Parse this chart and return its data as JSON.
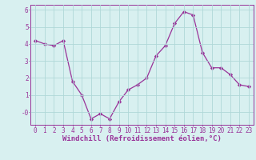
{
  "x": [
    0,
    1,
    2,
    3,
    4,
    5,
    6,
    7,
    8,
    9,
    10,
    11,
    12,
    13,
    14,
    15,
    16,
    17,
    18,
    19,
    20,
    21,
    22,
    23
  ],
  "y": [
    4.2,
    4.0,
    3.9,
    4.2,
    1.8,
    1.0,
    -0.4,
    -0.1,
    -0.4,
    0.6,
    1.3,
    1.6,
    2.0,
    3.3,
    3.9,
    5.2,
    5.9,
    5.7,
    3.5,
    2.6,
    2.6,
    2.2,
    1.6,
    1.5
  ],
  "line_color": "#993399",
  "marker": "D",
  "marker_size": 2.2,
  "bg_color": "#d8f0f0",
  "grid_color": "#b0d8d8",
  "xlabel": "Windchill (Refroidissement éolien,°C)",
  "ylim": [
    -0.75,
    6.3
  ],
  "xlim": [
    -0.5,
    23.5
  ],
  "xtick_labels": [
    "0",
    "1",
    "2",
    "3",
    "4",
    "5",
    "6",
    "7",
    "8",
    "9",
    "10",
    "11",
    "12",
    "13",
    "14",
    "15",
    "16",
    "17",
    "18",
    "19",
    "20",
    "21",
    "22",
    "23"
  ],
  "ytick_vals": [
    0,
    1,
    2,
    3,
    4,
    5,
    6
  ],
  "ytick_labels": [
    "-0",
    "1",
    "2",
    "3",
    "4",
    "5",
    "6"
  ],
  "tick_color": "#993399",
  "spine_color": "#993399",
  "label_color": "#993399",
  "tick_fontsize": 5.5,
  "xlabel_fontsize": 6.5
}
